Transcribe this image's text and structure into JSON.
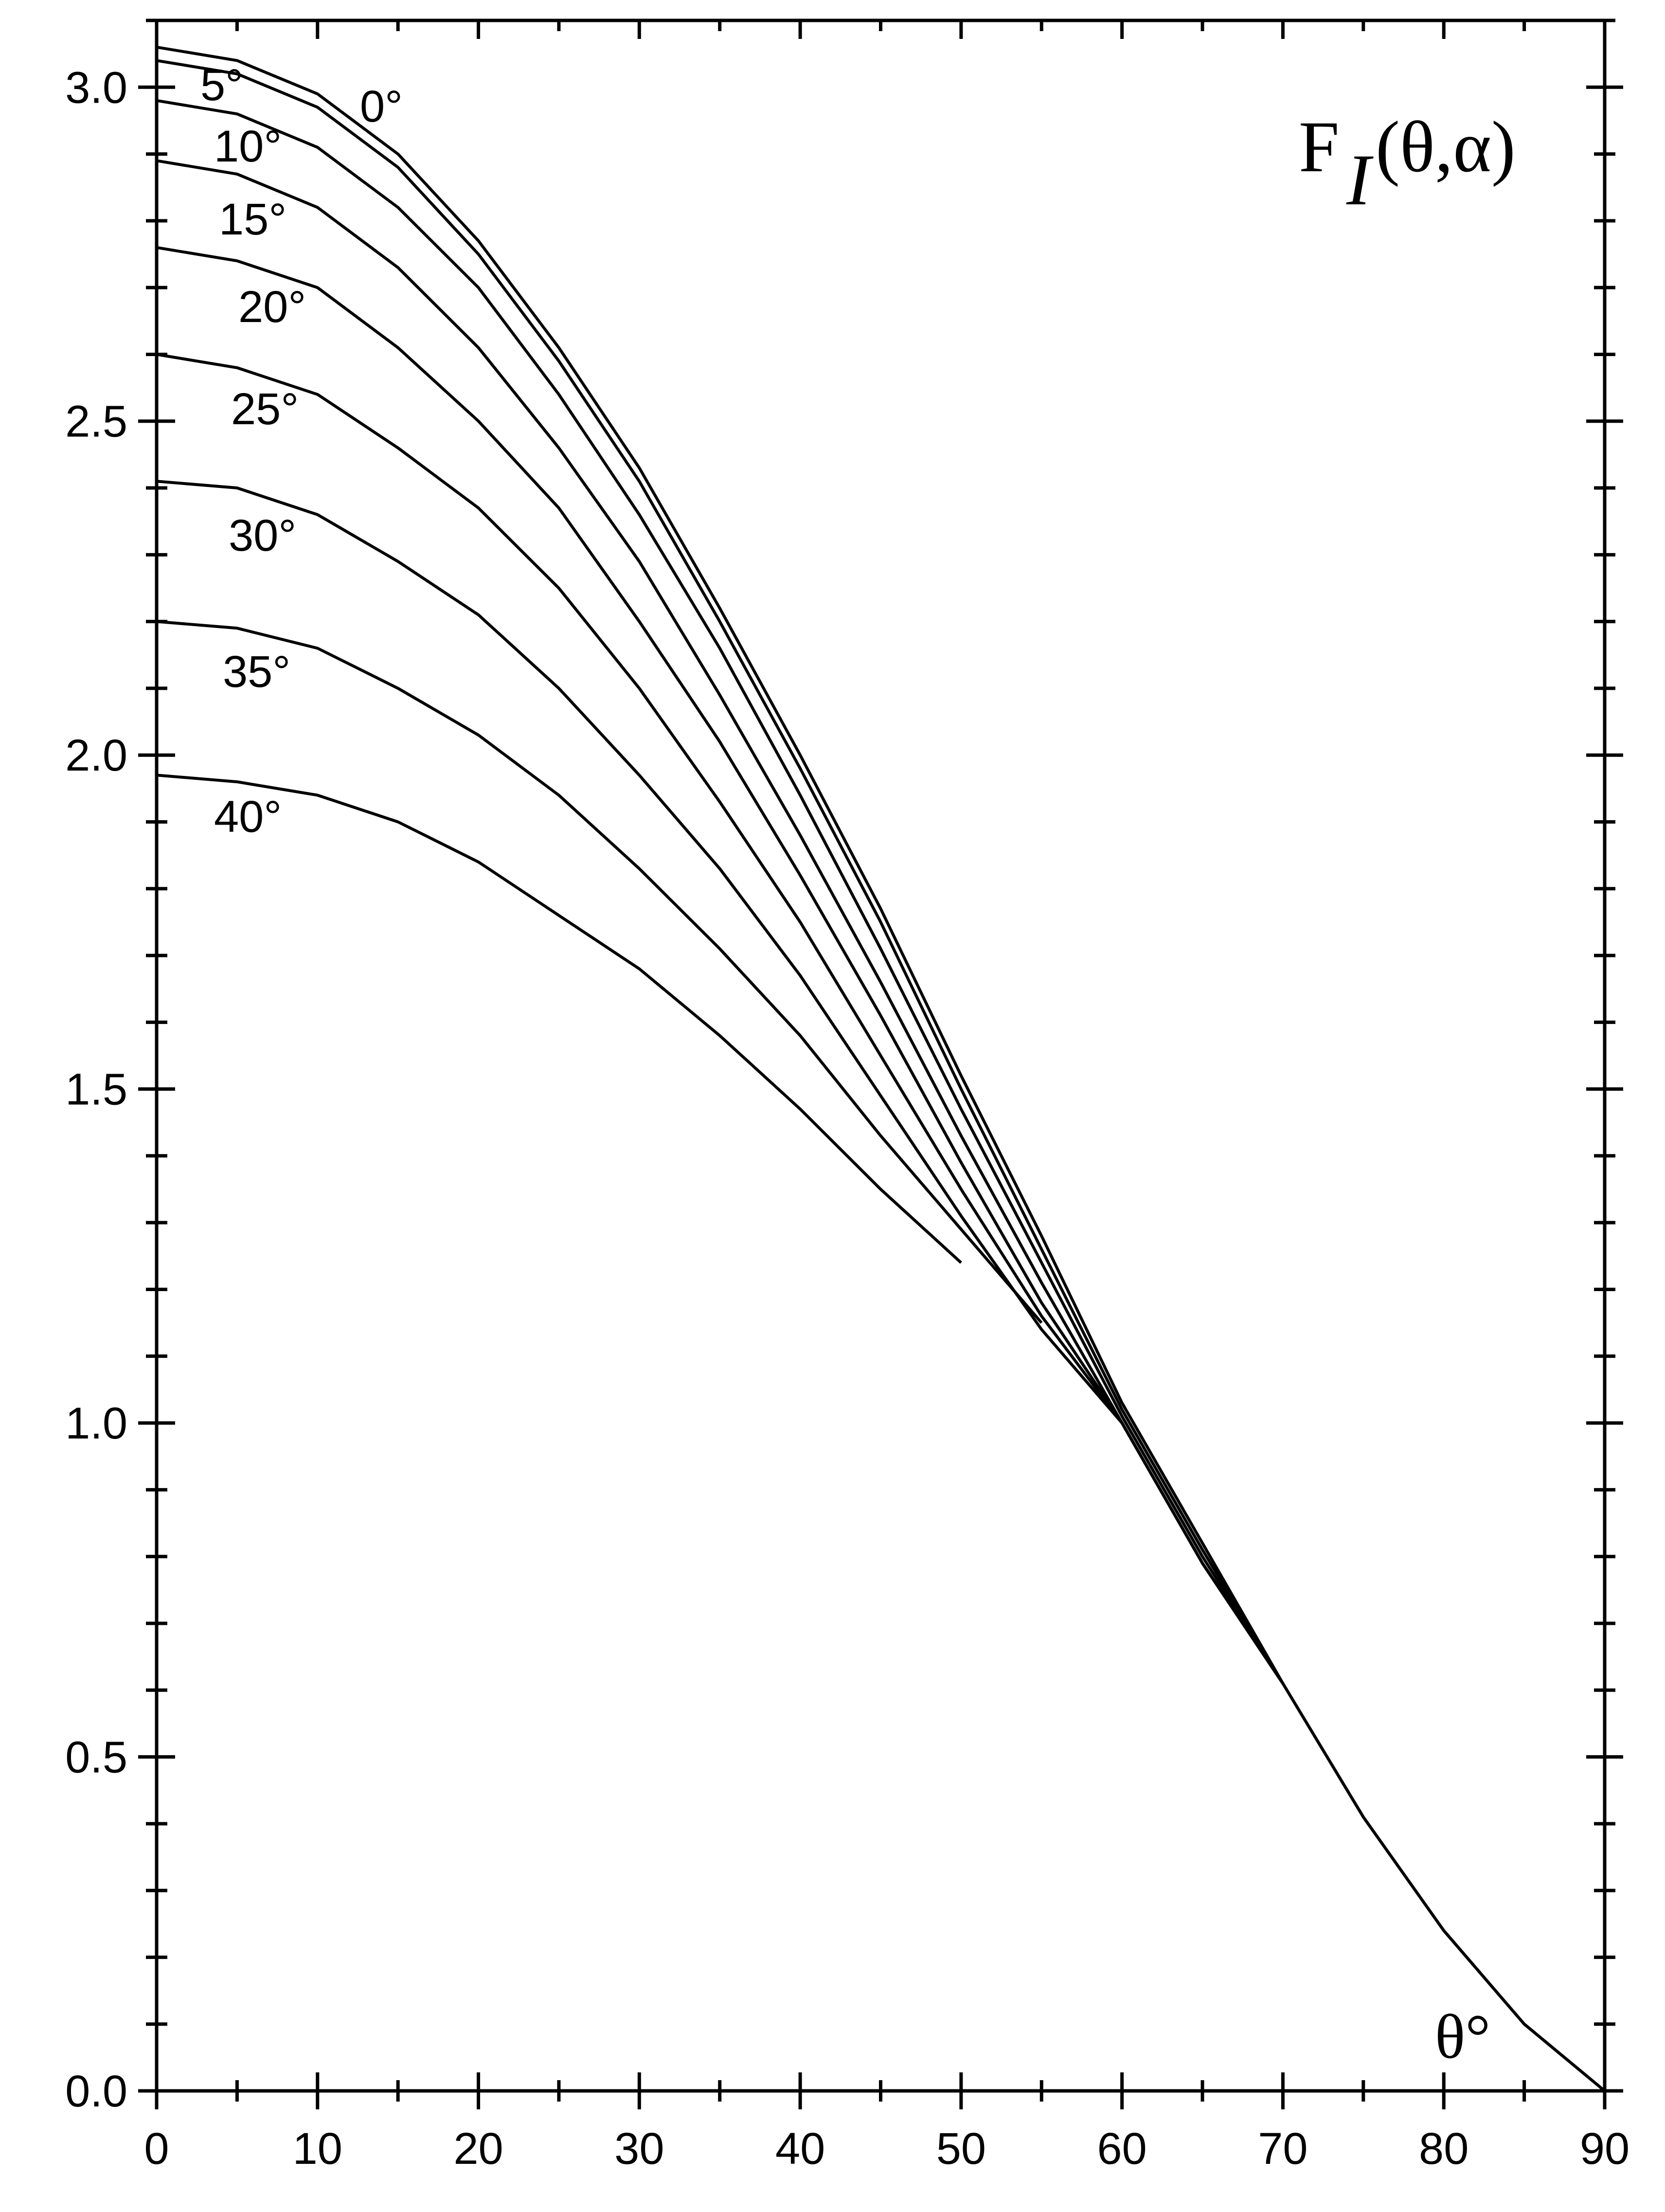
{
  "chart_data": {
    "type": "line",
    "title": "F",
    "title_subscript": "I",
    "title_args": "(θ,α)",
    "xlabel": "θ°",
    "ylabel": "",
    "xlim": [
      0,
      90
    ],
    "ylim": [
      0,
      3.1
    ],
    "x_major_ticks": [
      0,
      10,
      20,
      30,
      40,
      50,
      60,
      70,
      80,
      90
    ],
    "y_major_ticks": [
      0.0,
      0.5,
      1.0,
      1.5,
      2.0,
      2.5,
      3.0
    ],
    "x_tick_labels": [
      "0",
      "10",
      "20",
      "30",
      "40",
      "50",
      "60",
      "70",
      "80",
      "90"
    ],
    "y_tick_labels": [
      "0.0",
      "0.5",
      "1.0",
      "1.5",
      "2.0",
      "2.5",
      "3.0"
    ],
    "grid": false,
    "legend": "none",
    "series": [
      {
        "name": "0°",
        "x": [
          0,
          5,
          10,
          15,
          20,
          25,
          30,
          35,
          40,
          45,
          50,
          55,
          60,
          65,
          70,
          75,
          80,
          85,
          90
        ],
        "y": [
          3.06,
          3.04,
          2.99,
          2.9,
          2.77,
          2.61,
          2.43,
          2.22,
          2.0,
          1.77,
          1.52,
          1.28,
          1.03,
          0.82,
          0.61,
          0.41,
          0.24,
          0.1,
          0.0
        ]
      },
      {
        "name": "5°",
        "x": [
          0,
          5,
          10,
          15,
          20,
          25,
          30,
          35,
          40,
          45,
          50,
          55,
          60,
          65,
          70,
          75,
          80,
          85,
          90
        ],
        "y": [
          3.04,
          3.02,
          2.97,
          2.88,
          2.75,
          2.59,
          2.41,
          2.2,
          1.98,
          1.75,
          1.5,
          1.26,
          1.02,
          0.81,
          0.61,
          0.41,
          0.24,
          0.1,
          0.0
        ]
      },
      {
        "name": "10°",
        "x": [
          0,
          5,
          10,
          15,
          20,
          25,
          30,
          35,
          40,
          45,
          50,
          55,
          60,
          65,
          70
        ],
        "y": [
          2.98,
          2.96,
          2.91,
          2.82,
          2.7,
          2.54,
          2.36,
          2.16,
          1.94,
          1.71,
          1.47,
          1.24,
          1.01,
          0.8,
          0.61
        ]
      },
      {
        "name": "15°",
        "x": [
          0,
          5,
          10,
          15,
          20,
          25,
          30,
          35,
          40,
          45,
          50,
          55,
          60,
          65,
          70
        ],
        "y": [
          2.89,
          2.87,
          2.82,
          2.73,
          2.61,
          2.46,
          2.29,
          2.09,
          1.88,
          1.66,
          1.43,
          1.21,
          1.0,
          0.79,
          0.61
        ]
      },
      {
        "name": "20°",
        "x": [
          0,
          5,
          10,
          15,
          20,
          25,
          30,
          35,
          40,
          45,
          50,
          55,
          60,
          65,
          70
        ],
        "y": [
          2.76,
          2.74,
          2.7,
          2.61,
          2.5,
          2.37,
          2.2,
          2.02,
          1.82,
          1.61,
          1.39,
          1.18,
          1.0,
          0.79,
          0.61
        ]
      },
      {
        "name": "25°",
        "x": [
          0,
          5,
          10,
          15,
          20,
          25,
          30,
          35,
          40,
          45,
          50,
          55,
          60,
          65,
          70
        ],
        "y": [
          2.6,
          2.58,
          2.54,
          2.46,
          2.37,
          2.25,
          2.1,
          1.93,
          1.75,
          1.55,
          1.35,
          1.16,
          1.0,
          0.79,
          0.61
        ]
      },
      {
        "name": "30°",
        "x": [
          0,
          5,
          10,
          15,
          20,
          25,
          30,
          35,
          40,
          45,
          50,
          55,
          60,
          65,
          70
        ],
        "y": [
          2.41,
          2.4,
          2.36,
          2.29,
          2.21,
          2.1,
          1.97,
          1.83,
          1.67,
          1.49,
          1.31,
          1.14,
          1.0,
          0.79,
          0.61
        ]
      },
      {
        "name": "35°",
        "x": [
          0,
          5,
          10,
          15,
          20,
          25,
          30,
          35,
          40,
          45,
          50,
          55
        ],
        "y": [
          2.2,
          2.19,
          2.16,
          2.1,
          2.03,
          1.94,
          1.83,
          1.71,
          1.58,
          1.43,
          1.29,
          1.15
        ]
      },
      {
        "name": "40°",
        "x": [
          0,
          5,
          10,
          15,
          20,
          25,
          30,
          35,
          40,
          45,
          50
        ],
        "y": [
          1.97,
          1.96,
          1.94,
          1.9,
          1.84,
          1.76,
          1.68,
          1.58,
          1.47,
          1.35,
          1.24
        ]
      }
    ]
  }
}
